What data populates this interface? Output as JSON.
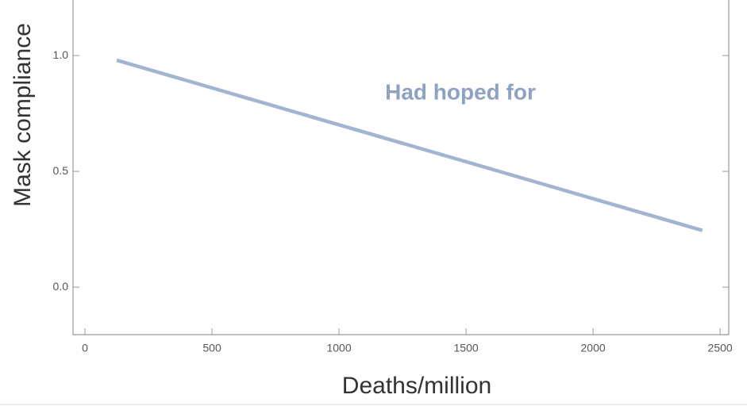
{
  "chart_data": {
    "type": "line",
    "x_label": "Deaths/million",
    "y_label": "Mask compliance",
    "annotation": "Had hoped for",
    "series": [
      {
        "color": "#a2b4cf",
        "x": [
          125,
          2430
        ],
        "values": [
          0.98,
          0.245
        ]
      }
    ],
    "xlim": [
      -47,
      2534
    ],
    "xticks": [
      0,
      500,
      1000,
      1500,
      2000,
      2500
    ],
    "ylim": [
      -0.205,
      1.24
    ],
    "yticks": [
      {
        "value": 0,
        "label": "0.0"
      },
      {
        "value": 0.5,
        "label": "0.5"
      },
      {
        "value": 1,
        "label": "1.0"
      }
    ],
    "annotation_color": "#8ea3c3"
  }
}
